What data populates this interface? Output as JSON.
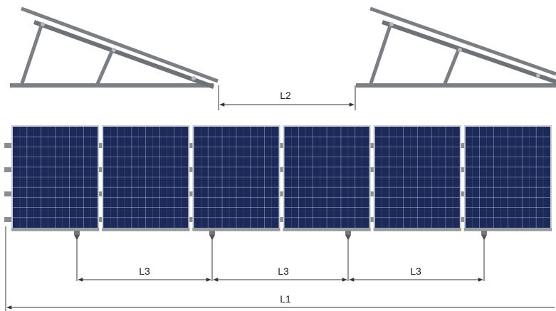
{
  "dimensions": {
    "L1": "L1",
    "L2": "L2",
    "L3_first": "L3",
    "L3_second": "L3",
    "L3_third": "L3"
  },
  "panel_array": {
    "panel_count": 6
  },
  "colors": {
    "panel": "#1c2a5a",
    "cell_line": "#e8ecf4",
    "frame": "#c9ced6",
    "rail": "#8a8d92",
    "mount_frame": "#7b7e82",
    "dimension_line": "#333333"
  }
}
